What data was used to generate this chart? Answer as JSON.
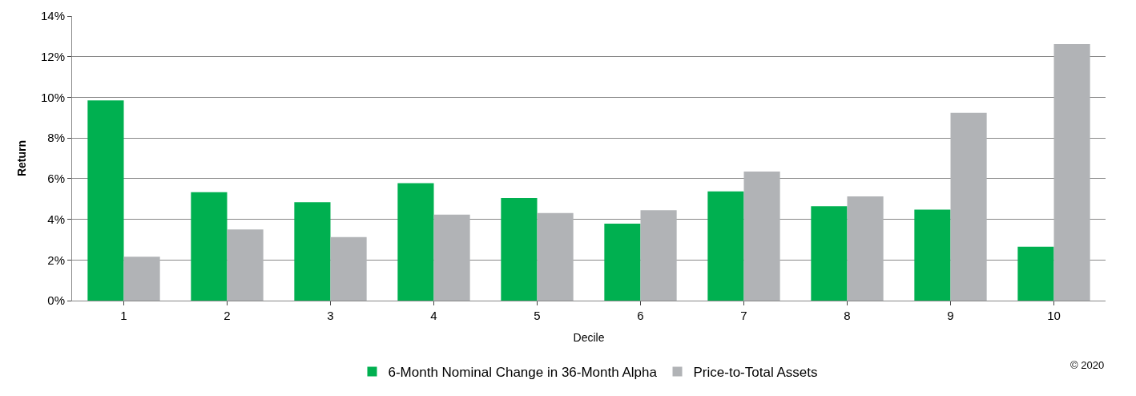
{
  "chart_data": {
    "type": "bar",
    "xlabel": "Decile",
    "ylabel": "Return",
    "categories": [
      "1",
      "2",
      "3",
      "4",
      "5",
      "6",
      "7",
      "8",
      "9",
      "10"
    ],
    "series": [
      {
        "name": "6-Month Nominal Change in 36-Month Alpha",
        "color": "#00b050",
        "values": [
          9.85,
          5.33,
          4.84,
          5.78,
          5.05,
          3.79,
          5.37,
          4.64,
          4.48,
          2.65
        ]
      },
      {
        "name": "Price-to-Total Assets",
        "color": "#b1b3b6",
        "values": [
          2.16,
          3.5,
          3.13,
          4.23,
          4.31,
          4.45,
          6.35,
          5.13,
          9.24,
          12.62
        ]
      }
    ],
    "ylim": [
      0,
      14
    ],
    "yticks": [
      {
        "value": 0,
        "label": "0%"
      },
      {
        "value": 2,
        "label": "2%"
      },
      {
        "value": 4,
        "label": "4%"
      },
      {
        "value": 6,
        "label": "6%"
      },
      {
        "value": 8,
        "label": "8%"
      },
      {
        "value": 10,
        "label": "10%"
      },
      {
        "value": 12,
        "label": "12%"
      },
      {
        "value": 14,
        "label": "14%"
      }
    ],
    "grid": "y",
    "legend": "bottom",
    "annotations": [
      "© 2020"
    ]
  }
}
